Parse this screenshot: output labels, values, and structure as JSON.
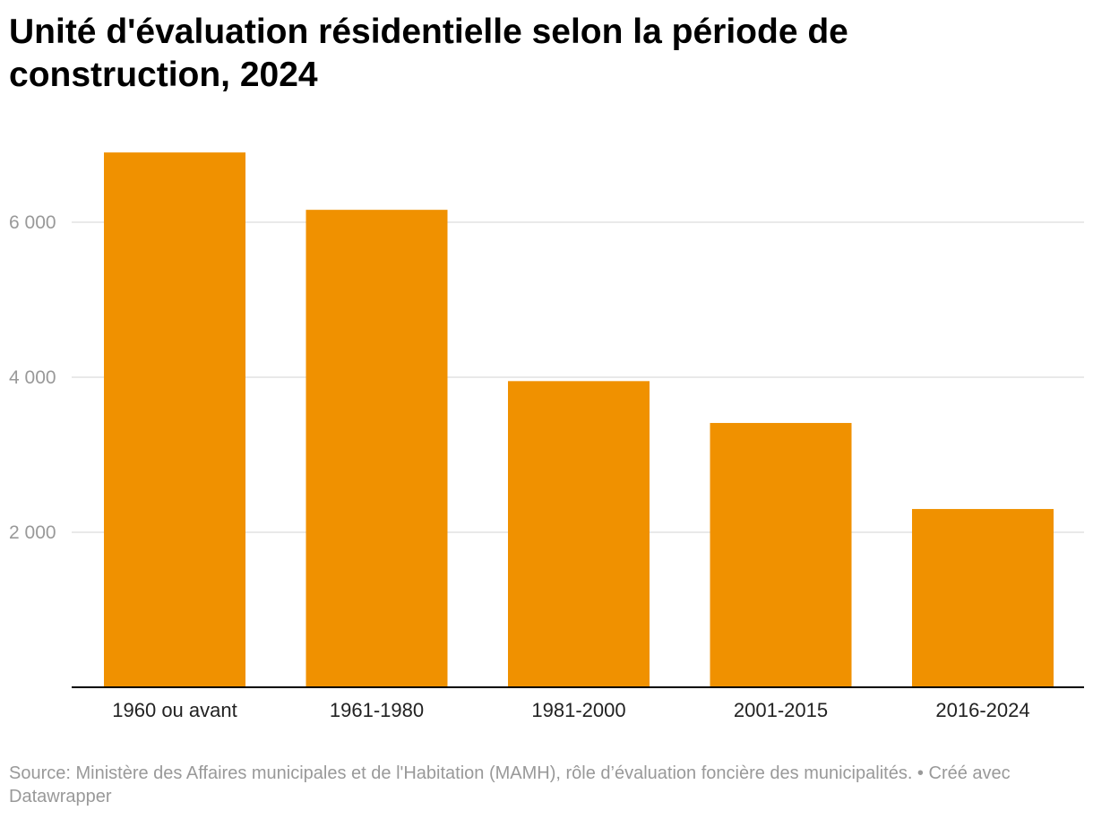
{
  "title": "Unité d'évaluation résidentielle selon la période de construction, 2024",
  "footer": {
    "source": "Source: Ministère des Affaires municipales et de l'Habitation (MAMH), rôle d’évaluation foncière des municipalités.",
    "separator": " • ",
    "credit": "Créé avec Datawrapper"
  },
  "colors": {
    "bar": "#f09100",
    "gridline": "#e2e2e2",
    "baseline": "#000000",
    "tick_label": "#999999",
    "category_label": "#222222"
  },
  "chart_data": {
    "type": "bar",
    "title": "Unité d'évaluation résidentielle selon la période de construction, 2024",
    "xlabel": "",
    "ylabel": "",
    "categories": [
      "1960 ou avant",
      "1961-1980",
      "1981-2000",
      "2001-2015",
      "2016-2024"
    ],
    "values": [
      6900,
      6160,
      3950,
      3410,
      2300
    ],
    "ylim": [
      0,
      7000
    ],
    "yticks": [
      2000,
      4000,
      6000
    ],
    "ytick_labels": [
      "2 000",
      "4 000",
      "6 000"
    ],
    "grid": true,
    "legend": "none"
  }
}
